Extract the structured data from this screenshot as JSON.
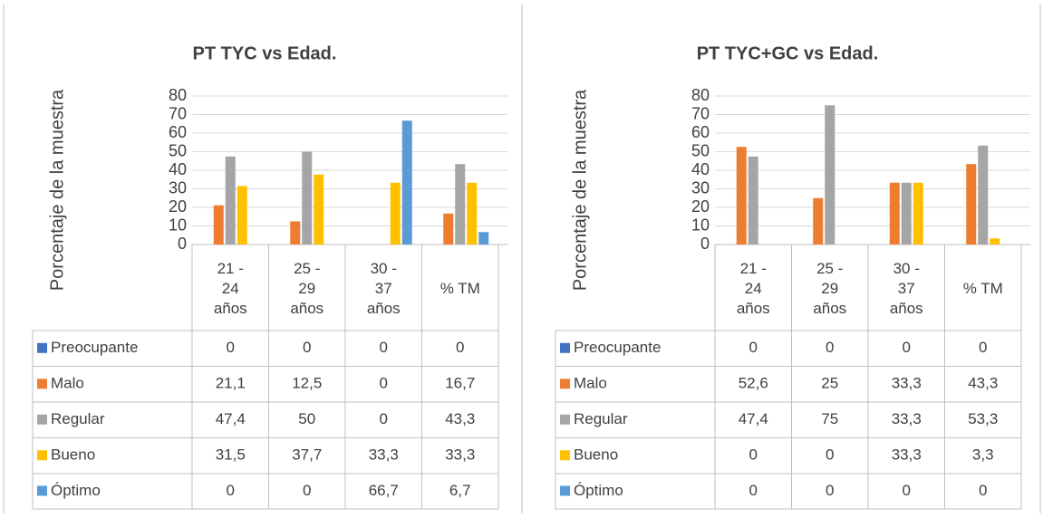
{
  "chart_data": [
    {
      "type": "bar",
      "title": "PT TYC vs Edad.",
      "y_label": "Porcentaje de la muestra",
      "categories": [
        "21 - 24 años",
        "25 - 29 años",
        "30 - 37 años",
        "% TM"
      ],
      "ylim": [
        0,
        80
      ],
      "yticks": [
        0,
        10,
        20,
        30,
        40,
        50,
        60,
        70,
        80
      ],
      "grid": true,
      "series": [
        {
          "name": "Preocupante",
          "color": "#4472c4",
          "values": [
            0,
            0,
            0,
            0
          ]
        },
        {
          "name": "Malo",
          "color": "#ed7d31",
          "values": [
            21.1,
            12.5,
            0,
            16.7
          ],
          "value_labels": [
            "21,1",
            "12,5",
            "0",
            "16,7"
          ]
        },
        {
          "name": "Regular",
          "color": "#a5a5a5",
          "values": [
            47.4,
            50,
            0,
            43.3
          ],
          "value_labels": [
            "47,4",
            "50",
            "0",
            "43,3"
          ]
        },
        {
          "name": "Bueno",
          "color": "#ffc000",
          "values": [
            31.5,
            37.7,
            33.3,
            33.3
          ],
          "value_labels": [
            "31,5",
            "37,7",
            "33,3",
            "33,3"
          ]
        },
        {
          "name": "Óptimo",
          "color": "#5b9bd5",
          "values": [
            0,
            0,
            66.7,
            6.7
          ],
          "value_labels": [
            "0",
            "0",
            "66,7",
            "6,7"
          ]
        }
      ]
    },
    {
      "type": "bar",
      "title": "PT TYC+GC vs Edad.",
      "y_label": "Porcentaje de la muestra",
      "categories": [
        "21 - 24 años",
        "25 - 29 años",
        "30 - 37 años",
        "% TM"
      ],
      "ylim": [
        0,
        80
      ],
      "yticks": [
        0,
        10,
        20,
        30,
        40,
        50,
        60,
        70,
        80
      ],
      "grid": true,
      "series": [
        {
          "name": "Preocupante",
          "color": "#4472c4",
          "values": [
            0,
            0,
            0,
            0
          ]
        },
        {
          "name": "Malo",
          "color": "#ed7d31",
          "values": [
            52.6,
            25,
            33.3,
            43.3
          ],
          "value_labels": [
            "52,6",
            "25",
            "33,3",
            "43,3"
          ]
        },
        {
          "name": "Regular",
          "color": "#a5a5a5",
          "values": [
            47.4,
            75,
            33.3,
            53.3
          ],
          "value_labels": [
            "47,4",
            "75",
            "33,3",
            "53,3"
          ]
        },
        {
          "name": "Bueno",
          "color": "#ffc000",
          "values": [
            0,
            0,
            33.3,
            3.3
          ],
          "value_labels": [
            "0",
            "0",
            "33,3",
            "3,3"
          ]
        },
        {
          "name": "Óptimo",
          "color": "#5b9bd5",
          "values": [
            0,
            0,
            0,
            0
          ]
        }
      ]
    }
  ]
}
